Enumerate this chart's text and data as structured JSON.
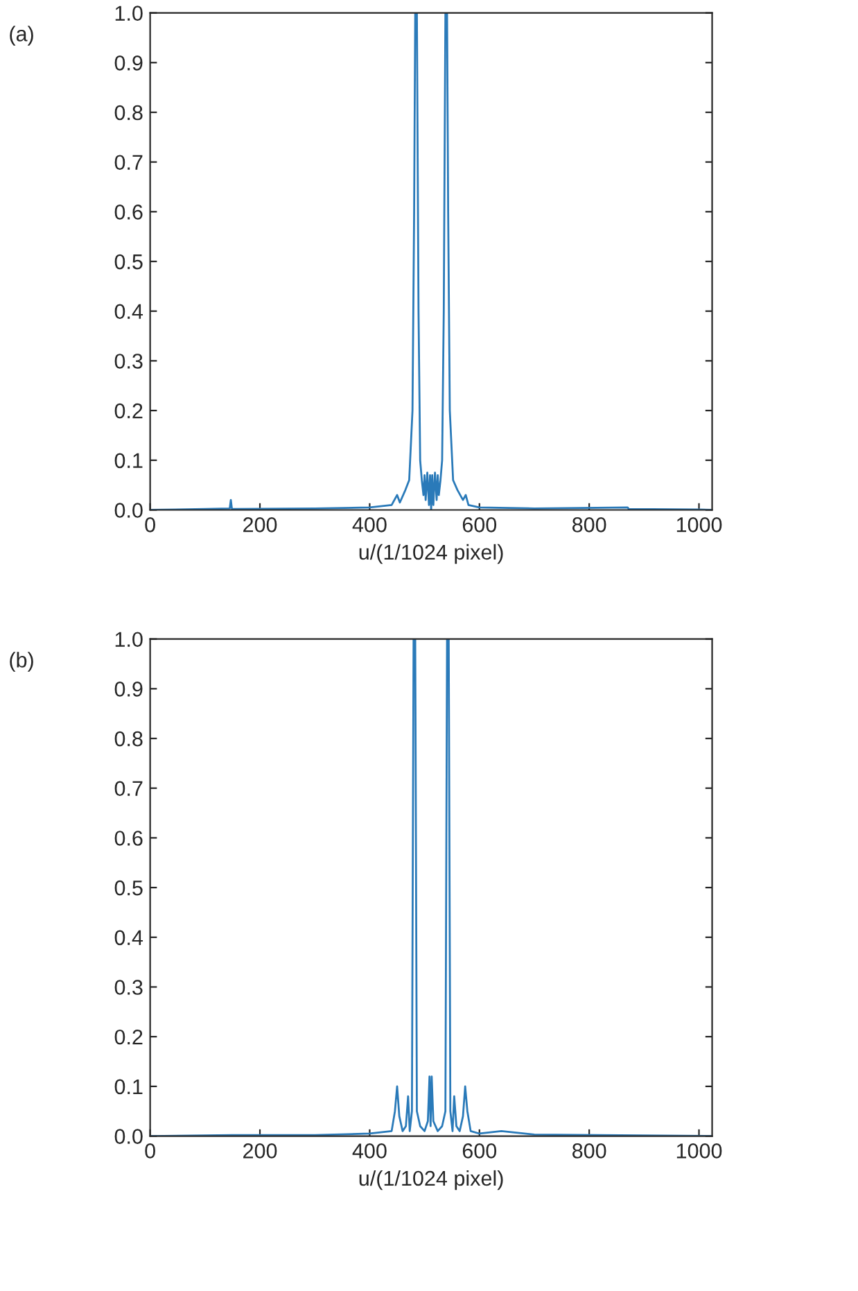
{
  "chart_data": [
    {
      "type": "line",
      "xlabel": "u/(1/1024 pixel)",
      "annotations": [
        "(a)"
      ],
      "xlim": [
        0,
        1024
      ],
      "xticks": [
        0,
        200,
        400,
        600,
        800,
        1000
      ],
      "ylim": [
        0,
        1.0
      ],
      "yticks": [
        {
          "value": 0,
          "label": "0.0"
        },
        {
          "value": 0.1,
          "label": "0.1"
        },
        {
          "value": 0.2,
          "label": "0.2"
        },
        {
          "value": 0.3,
          "label": "0.3"
        },
        {
          "value": 0.4,
          "label": "0.4"
        },
        {
          "value": 0.5,
          "label": "0.5"
        },
        {
          "value": 0.6,
          "label": "0.6"
        },
        {
          "value": 0.7,
          "label": "0.7"
        },
        {
          "value": 0.8,
          "label": "0.8"
        },
        {
          "value": 0.9,
          "label": "0.9"
        },
        {
          "value": 1.0,
          "label": "1.0"
        }
      ],
      "grid": false,
      "legend": false,
      "series": [
        {
          "color": "#2a7ab9",
          "x": [
            0,
            100,
            145,
            147,
            149,
            300,
            400,
            440,
            450,
            455,
            465,
            472,
            478,
            481,
            483,
            486,
            489,
            492,
            495,
            498,
            500,
            502,
            505,
            508,
            510,
            512,
            514,
            516,
            519,
            522,
            524,
            526,
            529,
            532,
            535,
            538,
            541,
            543,
            546,
            552,
            560,
            570,
            575,
            580,
            600,
            700,
            870,
            872,
            1000,
            1024
          ],
          "values": [
            0,
            0.002,
            0.003,
            0.02,
            0.002,
            0.003,
            0.005,
            0.01,
            0.03,
            0.015,
            0.04,
            0.06,
            0.2,
            0.6,
            1.0,
            1.0,
            0.4,
            0.1,
            0.06,
            0.03,
            0.07,
            0.02,
            0.075,
            0.01,
            0.07,
            0.0,
            0.07,
            0.01,
            0.075,
            0.02,
            0.07,
            0.03,
            0.06,
            0.1,
            0.4,
            1.0,
            1.0,
            0.6,
            0.2,
            0.06,
            0.04,
            0.02,
            0.03,
            0.01,
            0.005,
            0.003,
            0.005,
            0.002,
            0.001,
            0
          ]
        }
      ]
    },
    {
      "type": "line",
      "xlabel": "u/(1/1024 pixel)",
      "annotations": [
        "(b)"
      ],
      "xlim": [
        0,
        1024
      ],
      "xticks": [
        0,
        200,
        400,
        600,
        800,
        1000
      ],
      "ylim": [
        0,
        1.0
      ],
      "yticks": [
        {
          "value": 0,
          "label": "0.0"
        },
        {
          "value": 0.1,
          "label": "0.1"
        },
        {
          "value": 0.2,
          "label": "0.2"
        },
        {
          "value": 0.3,
          "label": "0.3"
        },
        {
          "value": 0.4,
          "label": "0.4"
        },
        {
          "value": 0.5,
          "label": "0.5"
        },
        {
          "value": 0.6,
          "label": "0.6"
        },
        {
          "value": 0.7,
          "label": "0.7"
        },
        {
          "value": 0.8,
          "label": "0.8"
        },
        {
          "value": 0.9,
          "label": "0.9"
        },
        {
          "value": 1.0,
          "label": "1.0"
        }
      ],
      "grid": false,
      "legend": false,
      "series": [
        {
          "color": "#2a7ab9",
          "x": [
            0,
            150,
            300,
            400,
            440,
            446,
            450,
            454,
            460,
            466,
            470,
            473,
            477,
            480,
            483,
            486,
            492,
            500,
            506,
            509,
            511,
            513,
            516,
            524,
            532,
            538,
            541,
            544,
            547,
            551,
            554,
            558,
            564,
            570,
            574,
            578,
            584,
            600,
            640,
            700,
            1024
          ],
          "values": [
            0,
            0.002,
            0.002,
            0.005,
            0.01,
            0.05,
            0.1,
            0.04,
            0.01,
            0.02,
            0.08,
            0.01,
            0.05,
            1.0,
            1.0,
            0.05,
            0.02,
            0.01,
            0.03,
            0.12,
            0.02,
            0.12,
            0.03,
            0.01,
            0.02,
            0.05,
            1.0,
            1.0,
            0.05,
            0.01,
            0.08,
            0.02,
            0.01,
            0.04,
            0.1,
            0.05,
            0.01,
            0.005,
            0.01,
            0.003,
            0
          ]
        }
      ]
    }
  ]
}
